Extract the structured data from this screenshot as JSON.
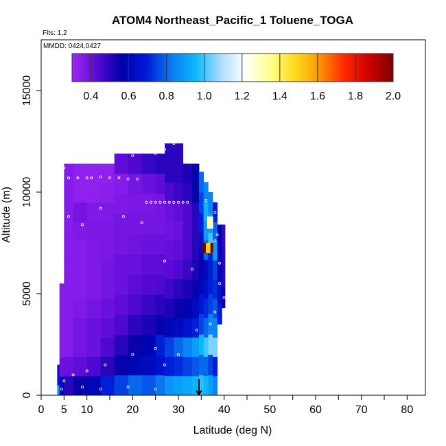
{
  "chart_data": {
    "type": "heatmap",
    "title": "ATOM4 Northeast_Pacific_1 Toluene_TOGA",
    "flights_label": "Flts: 1,2",
    "dates_label": "MMDD: 0424,0427",
    "xlabel": "Latitude (deg N)",
    "ylabel": "Altitude (m)",
    "xlim": [
      0,
      84
    ],
    "ylim": [
      0,
      17500
    ],
    "x_ticks": [
      0,
      5,
      10,
      20,
      30,
      40,
      50,
      60,
      70,
      80
    ],
    "x_minor_ticks": [
      15,
      25,
      35,
      45,
      55,
      65,
      75,
      85
    ],
    "y_ticks": [
      0,
      5000,
      10000,
      15000
    ],
    "colorbar": {
      "range": [
        0.3,
        2.0
      ],
      "tick_values": [
        0.4,
        0.6,
        0.8,
        1.0,
        1.2,
        1.4,
        1.6,
        1.8,
        2.0
      ],
      "tick_labels": [
        "0.4",
        "0.6",
        "0.8",
        "1.0",
        "1.2",
        "1.4",
        "1.6",
        "1.8",
        "2.0"
      ],
      "colors": [
        "#9f27f4",
        "#5a0ad6",
        "#0000a8",
        "#0018d8",
        "#0a78f0",
        "#0cb8ff",
        "#a8ddff",
        "#ffffff",
        "#ffff90",
        "#ffdc1e",
        "#ff9800",
        "#ff2a00",
        "#d20000",
        "#7a0000"
      ]
    },
    "profile_columns": [
      {
        "x0": 3.5,
        "x1": 4.5,
        "y0": 0,
        "y1": 1500,
        "values": [
          0.9,
          0.7,
          0.5
        ]
      },
      {
        "x0": 4,
        "x1": 5,
        "y0": 0,
        "y1": 5500,
        "values": [
          0.6,
          0.4,
          0.35,
          0.35,
          0.35,
          0.35
        ]
      },
      {
        "x0": 5,
        "x1": 7,
        "y0": 0,
        "y1": 11400,
        "values": [
          0.5,
          0.4,
          0.35,
          0.35,
          0.35,
          0.35,
          0.35,
          0.35,
          0.35,
          0.35,
          0.35,
          0.35
        ]
      },
      {
        "x0": 7,
        "x1": 10,
        "y0": 0,
        "y1": 11400,
        "values": [
          0.55,
          0.42,
          0.38,
          0.38,
          0.36,
          0.35,
          0.35,
          0.35,
          0.36,
          0.38,
          0.33,
          0.33
        ]
      },
      {
        "x0": 10,
        "x1": 13,
        "y0": 0,
        "y1": 11400,
        "values": [
          0.6,
          0.45,
          0.4,
          0.4,
          0.38,
          0.36,
          0.36,
          0.36,
          0.37,
          0.36,
          0.33,
          0.33
        ]
      },
      {
        "x0": 13,
        "x1": 16,
        "y0": 0,
        "y1": 11400,
        "values": [
          0.7,
          0.5,
          0.45,
          0.42,
          0.4,
          0.38,
          0.38,
          0.37,
          0.37,
          0.36,
          0.34,
          0.33
        ]
      },
      {
        "x0": 16,
        "x1": 19,
        "y0": 0,
        "y1": 11900,
        "values": [
          0.75,
          0.55,
          0.5,
          0.45,
          0.42,
          0.4,
          0.4,
          0.38,
          0.38,
          0.36,
          0.35,
          0.42
        ]
      },
      {
        "x0": 19,
        "x1": 22,
        "y0": 0,
        "y1": 11900,
        "values": [
          0.8,
          0.6,
          0.55,
          0.5,
          0.45,
          0.42,
          0.4,
          0.39,
          0.38,
          0.37,
          0.38,
          0.45
        ]
      },
      {
        "x0": 22,
        "x1": 25,
        "y0": 0,
        "y1": 11900,
        "values": [
          0.78,
          0.62,
          0.58,
          0.52,
          0.48,
          0.44,
          0.42,
          0.4,
          0.38,
          0.37,
          0.4,
          0.48
        ]
      },
      {
        "x0": 25,
        "x1": 27,
        "y0": 0,
        "y1": 11900,
        "values": [
          0.82,
          0.66,
          0.7,
          0.55,
          0.5,
          0.45,
          0.42,
          0.4,
          0.38,
          0.38,
          0.42,
          0.5
        ]
      },
      {
        "x0": 27,
        "x1": 29,
        "y0": 0,
        "y1": 12400,
        "values": [
          0.88,
          0.7,
          0.75,
          0.6,
          0.52,
          0.47,
          0.43,
          0.41,
          0.39,
          0.4,
          0.45,
          0.5,
          0.5
        ]
      },
      {
        "x0": 29,
        "x1": 31,
        "y0": 0,
        "y1": 12400,
        "values": [
          0.9,
          0.72,
          0.8,
          0.62,
          0.55,
          0.5,
          0.45,
          0.42,
          0.4,
          0.42,
          0.48,
          0.5,
          0.5
        ]
      },
      {
        "x0": 31,
        "x1": 33,
        "y0": 0,
        "y1": 11400,
        "values": [
          0.92,
          0.75,
          0.85,
          0.66,
          0.58,
          0.52,
          0.48,
          0.45,
          0.45,
          0.45,
          0.5,
          0.52
        ]
      },
      {
        "x0": 33,
        "x1": 34.5,
        "y0": 0,
        "y1": 11400,
        "values": [
          0.95,
          0.78,
          0.9,
          0.7,
          0.62,
          0.55,
          0.52,
          0.5,
          0.5,
          0.5,
          0.55,
          0.55
        ]
      },
      {
        "x0": 34.5,
        "x1": 35.5,
        "y0": 0,
        "y1": 11000,
        "values": [
          0.98,
          0.8,
          0.95,
          0.75,
          0.68,
          0.6,
          0.58,
          0.65,
          0.7,
          0.75,
          0.8
        ]
      },
      {
        "x0": 35.5,
        "x1": 36.5,
        "y0": 0,
        "y1": 10500,
        "values": [
          0.95,
          0.8,
          1.0,
          0.8,
          0.72,
          0.65,
          0.62,
          0.8,
          0.9,
          0.95,
          0.85
        ]
      },
      {
        "x0": 36.5,
        "x1": 37.5,
        "y0": 0,
        "y1": 10000,
        "values": [
          0.9,
          0.75,
          1.05,
          0.85,
          0.75,
          0.7,
          0.7,
          1.0,
          0.9,
          0.85
        ]
      },
      {
        "x0": 37.5,
        "x1": 38.5,
        "y0": 0,
        "y1": 9500,
        "values": [
          0.85,
          0.7,
          1.05,
          0.85,
          0.78,
          0.72,
          0.75,
          0.9,
          0.8,
          0.7
        ]
      },
      {
        "x0": 38.5,
        "x1": 39.5,
        "y0": 3500,
        "y1": 8400,
        "values": [
          0.7,
          0.65,
          0.6,
          0.6,
          0.55
        ]
      },
      {
        "x0": 39.5,
        "x1": 40.2,
        "y0": 4300,
        "y1": 8400,
        "values": [
          0.55,
          0.5,
          0.5,
          0.48
        ]
      }
    ],
    "highlights": [
      {
        "x0": 35.2,
        "x1": 37.6,
        "y0": 7000,
        "y1": 7500,
        "value": 2.0
      },
      {
        "x0": 36.0,
        "x1": 37.0,
        "y0": 7000,
        "y1": 7500,
        "value": 1.5
      },
      {
        "x0": 36.3,
        "x1": 37.6,
        "y0": 8200,
        "y1": 8800,
        "value": 1.3
      }
    ],
    "sample_points": [
      [
        5,
        11200
      ],
      [
        6,
        10700
      ],
      [
        8,
        10700
      ],
      [
        10,
        10700
      ],
      [
        11,
        10700
      ],
      [
        13,
        10750
      ],
      [
        15,
        10700
      ],
      [
        17,
        10700
      ],
      [
        19,
        10650
      ],
      [
        21,
        10650
      ],
      [
        23,
        9500
      ],
      [
        24,
        9500
      ],
      [
        25,
        9500
      ],
      [
        26,
        9500
      ],
      [
        27,
        9500
      ],
      [
        28,
        9500
      ],
      [
        29,
        9500
      ],
      [
        30,
        9500
      ],
      [
        31,
        9500
      ],
      [
        32,
        9500
      ],
      [
        4.5,
        10000
      ],
      [
        6,
        8800
      ],
      [
        9,
        8400
      ],
      [
        13,
        9200
      ],
      [
        18,
        8800
      ],
      [
        22,
        8500
      ],
      [
        27,
        6600
      ],
      [
        33,
        6200
      ],
      [
        36,
        9600
      ],
      [
        38,
        9000
      ],
      [
        37,
        8400
      ],
      [
        38.5,
        7900
      ],
      [
        38,
        7600
      ],
      [
        39,
        6500
      ],
      [
        39,
        5500
      ],
      [
        40,
        4800
      ],
      [
        38,
        4100
      ],
      [
        37,
        3500
      ],
      [
        34,
        3200
      ],
      [
        30,
        2000
      ],
      [
        27,
        1500
      ],
      [
        25,
        2300
      ],
      [
        20,
        2000
      ],
      [
        14,
        1500
      ],
      [
        10,
        1200
      ],
      [
        7,
        1000
      ],
      [
        5,
        700
      ],
      [
        4.5,
        300
      ],
      [
        9,
        400
      ],
      [
        13,
        300
      ],
      [
        19,
        400
      ],
      [
        25,
        300
      ],
      [
        27,
        12100
      ],
      [
        29,
        12400
      ],
      [
        25,
        11900
      ],
      [
        20,
        11800
      ]
    ],
    "arrow": {
      "x": 34.5,
      "y_top": 800,
      "y_bottom": 0
    }
  }
}
